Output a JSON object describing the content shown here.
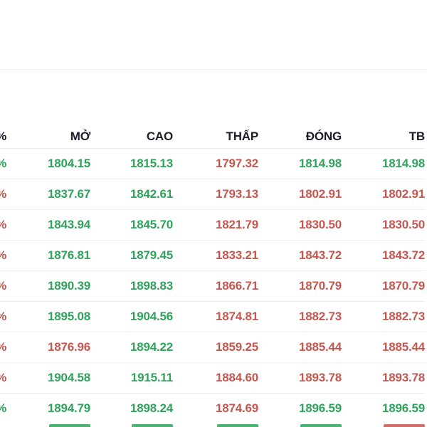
{
  "colors": {
    "positive": "#2fa35c",
    "negative": "#c5574f",
    "header_text": "#1c1d29",
    "row_divider": "#f2eded",
    "top_divider": "#ededed",
    "background": "#ffffff"
  },
  "table": {
    "partial_left_column": {
      "header_symbol": "%",
      "cell_symbol": "%"
    },
    "columns": [
      {
        "key": "open",
        "label": "MỞ"
      },
      {
        "key": "high",
        "label": "CAO"
      },
      {
        "key": "low",
        "label": "THẤP"
      },
      {
        "key": "close",
        "label": "ĐÓNG"
      },
      {
        "key": "avg",
        "label": "TB"
      }
    ],
    "rows": [
      {
        "pct_trend": "up",
        "values": [
          "1804.15",
          "1815.13",
          "1797.32",
          "1814.98",
          "1814.98"
        ],
        "trends": [
          "up",
          "up",
          "down",
          "up",
          "up"
        ]
      },
      {
        "pct_trend": "down",
        "values": [
          "1837.67",
          "1842.61",
          "1793.13",
          "1802.91",
          "1802.91"
        ],
        "trends": [
          "up",
          "up",
          "down",
          "down",
          "down"
        ]
      },
      {
        "pct_trend": "down",
        "values": [
          "1843.94",
          "1845.70",
          "1821.79",
          "1830.50",
          "1830.50"
        ],
        "trends": [
          "up",
          "up",
          "down",
          "down",
          "down"
        ]
      },
      {
        "pct_trend": "down",
        "values": [
          "1876.81",
          "1879.45",
          "1833.21",
          "1843.72",
          "1843.72"
        ],
        "trends": [
          "up",
          "up",
          "down",
          "down",
          "down"
        ]
      },
      {
        "pct_trend": "down",
        "values": [
          "1890.39",
          "1898.83",
          "1866.71",
          "1870.79",
          "1870.79"
        ],
        "trends": [
          "up",
          "up",
          "down",
          "down",
          "down"
        ]
      },
      {
        "pct_trend": "down",
        "values": [
          "1895.08",
          "1904.56",
          "1874.81",
          "1882.73",
          "1882.73"
        ],
        "trends": [
          "up",
          "up",
          "down",
          "down",
          "down"
        ]
      },
      {
        "pct_trend": "down",
        "values": [
          "1876.96",
          "1894.22",
          "1859.25",
          "1885.44",
          "1885.44"
        ],
        "trends": [
          "down",
          "up",
          "down",
          "down",
          "down"
        ]
      },
      {
        "pct_trend": "down",
        "values": [
          "1904.58",
          "1915.11",
          "1884.60",
          "1893.78",
          "1893.78"
        ],
        "trends": [
          "up",
          "up",
          "down",
          "down",
          "down"
        ]
      },
      {
        "pct_trend": "up",
        "values": [
          "1894.79",
          "1898.24",
          "1874.69",
          "1896.59",
          "1896.59"
        ],
        "trends": [
          "up",
          "up",
          "down",
          "up",
          "up"
        ]
      }
    ],
    "partial_next_row_trends": [
      "up",
      "up",
      "up",
      "up",
      "down"
    ]
  }
}
